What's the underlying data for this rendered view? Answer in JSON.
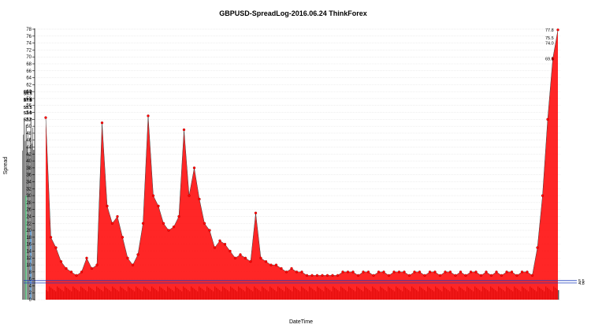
{
  "chart_data": {
    "type": "line",
    "title": "GBPUSD-SpreadLog-2016.06.24 ThinkForex",
    "xlabel": "DateTime",
    "ylabel": "Spread",
    "ylim": [
      0,
      78
    ],
    "yticks": [
      0,
      2,
      4,
      6,
      8,
      10,
      12,
      14,
      16,
      18,
      20,
      22,
      24,
      26,
      28,
      30,
      32,
      34,
      36,
      38,
      40,
      42,
      44,
      46,
      48,
      50,
      52,
      54,
      56,
      58,
      60,
      62,
      64,
      66,
      68,
      70,
      72,
      74,
      76,
      78
    ],
    "grid": true,
    "right_annotations": [
      {
        "label": "77.8",
        "value": 77.8
      },
      {
        "label": "75.5",
        "value": 75.5
      },
      {
        "label": "74.0",
        "value": 74.0
      },
      {
        "label": "69.5",
        "value": 69.5
      },
      {
        "label": "60.0",
        "value": 60.0
      },
      {
        "label": "59.5",
        "value": 59.5
      },
      {
        "label": "57.8",
        "value": 57.8
      },
      {
        "label": "57.5",
        "value": 57.5
      },
      {
        "label": "55.5",
        "value": 55.5
      },
      {
        "label": "53.9",
        "value": 53.9
      },
      {
        "label": "52.0",
        "value": 52.0
      }
    ],
    "reference_lines": [
      {
        "value": 5.5,
        "label": "5.5",
        "color": "#1f3fbf"
      },
      {
        "value": 4.8,
        "label": "4.8",
        "color": "#1f3fbf"
      }
    ],
    "series": [
      {
        "color": "#ff0000",
        "x": [
          0,
          1,
          2,
          3,
          4,
          5,
          6,
          7,
          8,
          9,
          10,
          11,
          12,
          13,
          14,
          15,
          16,
          17,
          18,
          19,
          20,
          21,
          22,
          23,
          24,
          25,
          26,
          27,
          28,
          29,
          30,
          31,
          32,
          33,
          34,
          35,
          36,
          37,
          38,
          39,
          40,
          41,
          42,
          43,
          44,
          45,
          46,
          47,
          48,
          49,
          50,
          51,
          52,
          53,
          54,
          55,
          56,
          57,
          58,
          59,
          60,
          61,
          62,
          63,
          64,
          65,
          66,
          67,
          68,
          69,
          70,
          71,
          72,
          73,
          74,
          75,
          76,
          77,
          78,
          79,
          80,
          81,
          82,
          83,
          84,
          85,
          86,
          87,
          88,
          89,
          90,
          91,
          92,
          93,
          94,
          95,
          96,
          97,
          98,
          99,
          100
        ],
        "y": [
          52.5,
          18,
          15,
          11,
          9,
          8,
          7,
          8,
          12,
          9,
          10,
          51,
          27,
          22,
          24,
          18,
          12,
          10,
          13,
          22,
          53,
          30,
          27,
          22,
          20,
          21,
          24,
          49,
          30,
          38,
          29,
          22,
          20,
          15,
          17,
          16,
          14,
          12,
          13,
          12,
          11,
          25,
          12,
          11,
          10,
          10,
          9,
          8,
          9,
          8,
          8,
          7,
          7,
          7,
          7,
          7,
          7,
          7,
          8,
          8,
          8,
          7,
          8,
          8,
          7,
          8,
          8,
          7,
          8,
          8,
          8,
          7,
          8,
          8,
          7,
          8,
          8,
          7,
          8,
          8,
          7,
          8,
          7,
          8,
          8,
          7,
          8,
          7,
          8,
          7,
          8,
          8,
          7,
          8,
          8,
          7,
          15,
          30,
          52,
          69.5,
          77.8
        ]
      }
    ]
  }
}
